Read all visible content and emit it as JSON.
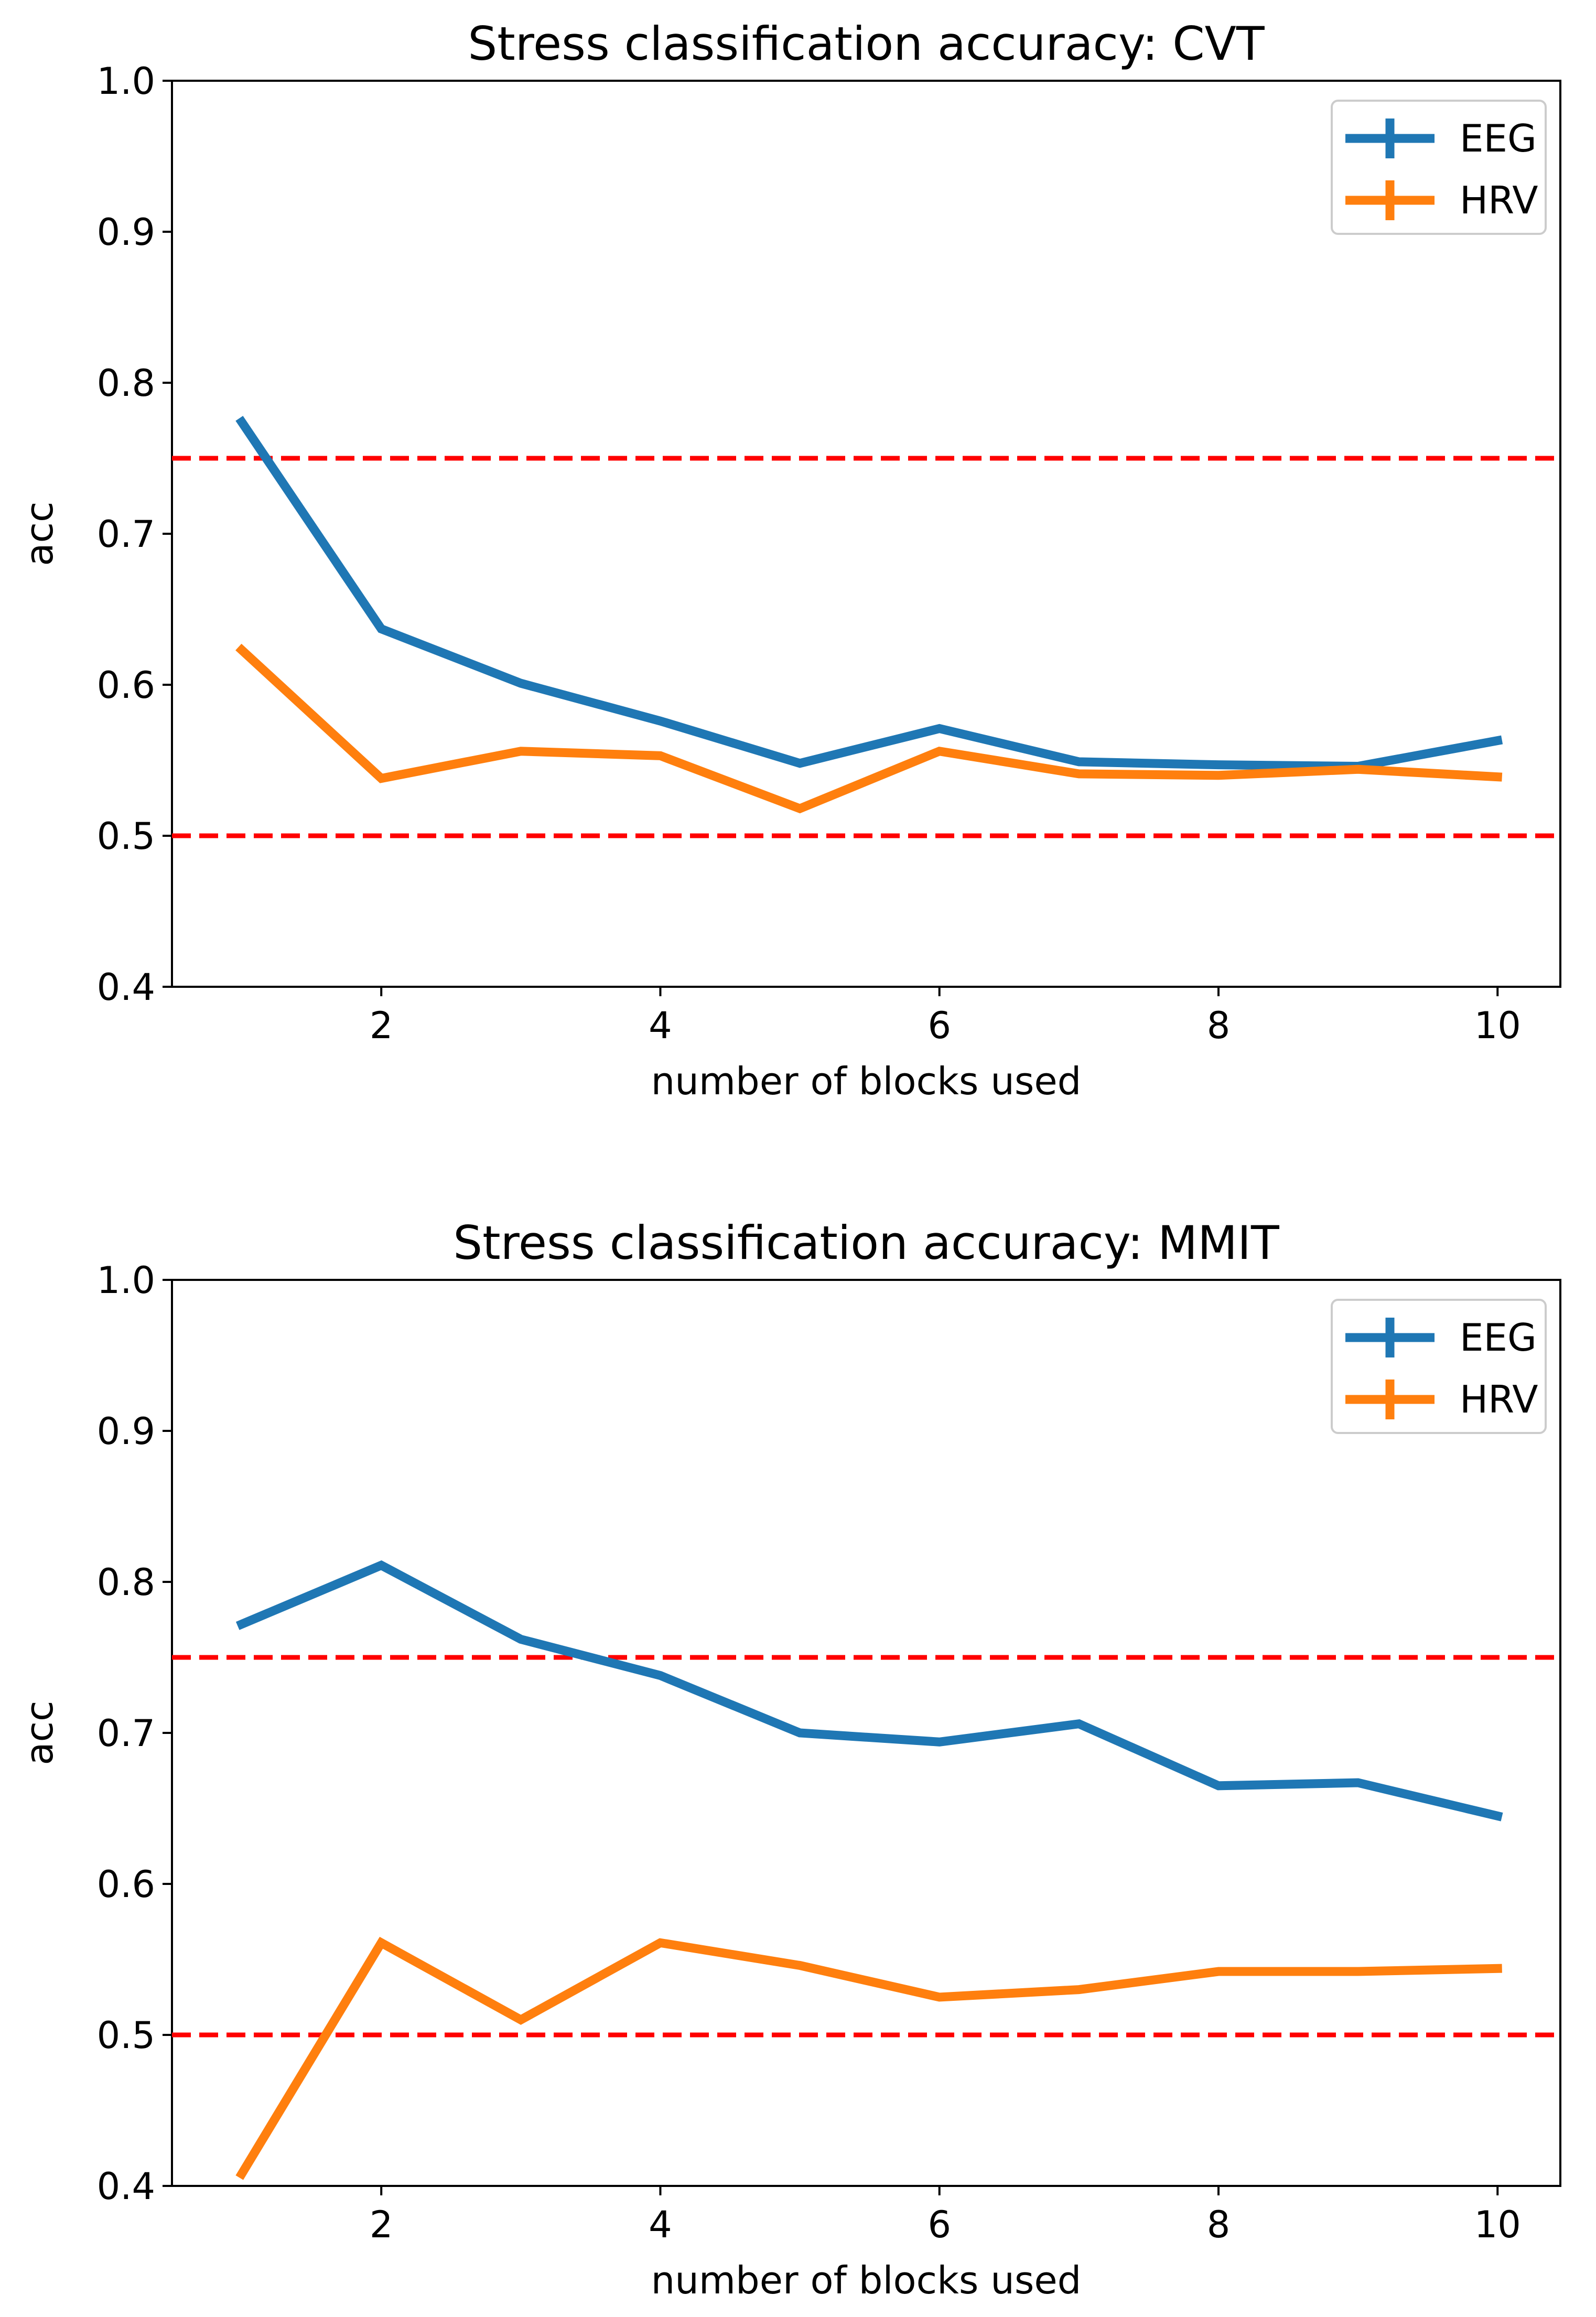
{
  "colors": {
    "eeg": "#1f77b4",
    "hrv": "#ff7f0e",
    "reference": "#ff0000",
    "axes": "#000000"
  },
  "chart_data": [
    {
      "type": "line",
      "title": "Stress classification accuracy: CVT",
      "xlabel": "number of blocks used",
      "ylabel": "acc",
      "xlim": [
        0.5,
        10.45
      ],
      "ylim": [
        0.4,
        1.0
      ],
      "xticks": [
        2,
        4,
        6,
        8,
        10
      ],
      "xtick_labels": [
        "2",
        "4",
        "6",
        "8",
        "10"
      ],
      "yticks": [
        0.4,
        0.5,
        0.6,
        0.7,
        0.8,
        0.9,
        1.0
      ],
      "ytick_labels": [
        "0.4",
        "0.5",
        "0.6",
        "0.7",
        "0.8",
        "0.9",
        "1.0"
      ],
      "reference_lines": [
        0.75,
        0.5
      ],
      "legend_position": "top-right",
      "x": [
        1,
        2,
        3,
        4,
        5,
        6,
        7,
        8,
        9,
        10
      ],
      "series": [
        {
          "name": "EEG",
          "color_key": "eeg",
          "values": [
            0.774,
            0.637,
            0.601,
            0.576,
            0.548,
            0.571,
            0.549,
            0.547,
            0.546,
            0.563
          ]
        },
        {
          "name": "HRV",
          "color_key": "hrv",
          "values": [
            0.623,
            0.538,
            0.556,
            0.553,
            0.518,
            0.556,
            0.541,
            0.54,
            0.544,
            0.539
          ]
        }
      ]
    },
    {
      "type": "line",
      "title": "Stress classification accuracy: MMIT",
      "xlabel": "number of blocks used",
      "ylabel": "acc",
      "xlim": [
        0.5,
        10.45
      ],
      "ylim": [
        0.4,
        1.0
      ],
      "xticks": [
        2,
        4,
        6,
        8,
        10
      ],
      "xtick_labels": [
        "2",
        "4",
        "6",
        "8",
        "10"
      ],
      "yticks": [
        0.4,
        0.5,
        0.6,
        0.7,
        0.8,
        0.9,
        1.0
      ],
      "ytick_labels": [
        "0.4",
        "0.5",
        "0.6",
        "0.7",
        "0.8",
        "0.9",
        "1.0"
      ],
      "reference_lines": [
        0.75,
        0.5
      ],
      "legend_position": "top-right",
      "x": [
        1,
        2,
        3,
        4,
        5,
        6,
        7,
        8,
        9,
        10
      ],
      "series": [
        {
          "name": "EEG",
          "color_key": "eeg",
          "values": [
            0.772,
            0.811,
            0.762,
            0.738,
            0.7,
            0.694,
            0.706,
            0.665,
            0.667,
            0.645
          ]
        },
        {
          "name": "HRV",
          "color_key": "hrv",
          "values": [
            0.408,
            0.561,
            0.51,
            0.561,
            0.546,
            0.525,
            0.53,
            0.542,
            0.542,
            0.544
          ]
        }
      ]
    }
  ]
}
